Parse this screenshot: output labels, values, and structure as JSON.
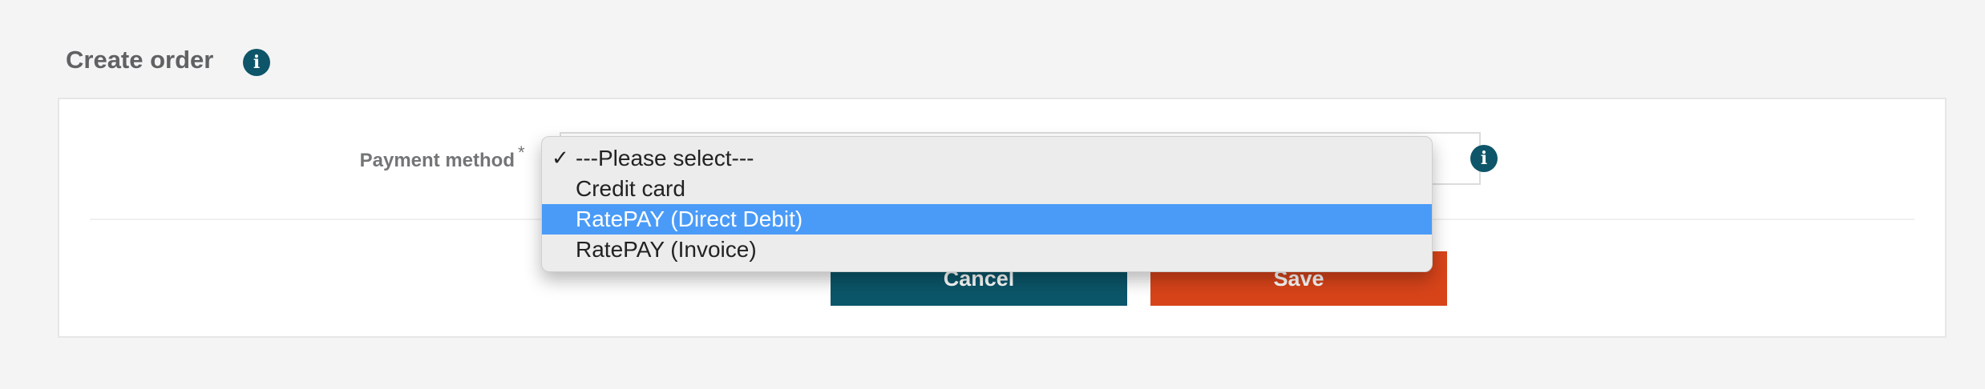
{
  "page": {
    "title": "Create order",
    "title_info_icon": "info-icon"
  },
  "form": {
    "payment_method": {
      "label": "Payment method",
      "required_marker": "*",
      "info_icon": "info-icon",
      "options": [
        {
          "label": "---Please select---",
          "checked": true
        },
        {
          "label": "Credit card",
          "checked": false
        },
        {
          "label": "RatePAY (Direct Debit)",
          "highlighted": true
        },
        {
          "label": "RatePAY (Invoice)",
          "checked": false
        }
      ],
      "checkmark": "✓"
    }
  },
  "actions": {
    "cancel_label": "Cancel",
    "save_label": "Save"
  },
  "colors": {
    "background": "#f4f4f4",
    "accent_teal": "#0b5669",
    "accent_orange": "#d8441a",
    "highlight_blue": "#4a9bf7"
  }
}
